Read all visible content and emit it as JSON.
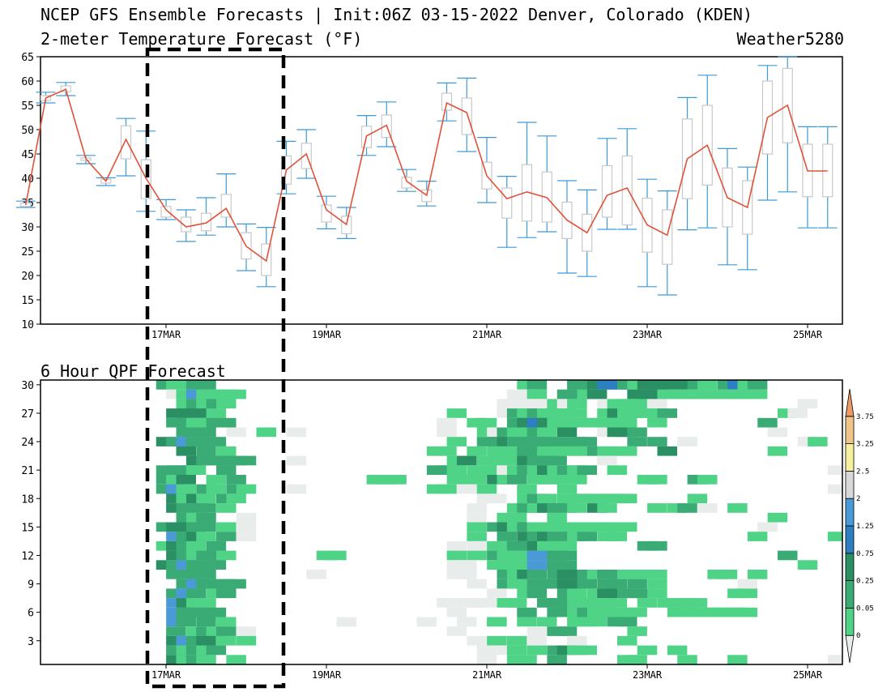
{
  "header": {
    "title": "NCEP GFS Ensemble Forecasts | Init:06Z 03-15-2022 Denver, Colorado (KDEN)",
    "subtitle": "2-meter Temperature Forecast (°F)",
    "brand": "Weather5280",
    "qpf_title": "6 Hour QPF Forecast"
  },
  "colors": {
    "mean_line": "#e0523a",
    "whisker": "#3d9ad6",
    "box": "#c8c8c8",
    "highlight": "#000000"
  },
  "chart_data": [
    {
      "type": "box",
      "title": "2-meter Temperature Forecast (°F)",
      "ylim": [
        10,
        65
      ],
      "yticks": [
        10,
        15,
        20,
        25,
        30,
        35,
        40,
        45,
        50,
        55,
        60,
        65
      ],
      "xlim": [
        15.25,
        25.25
      ],
      "xticks": [
        {
          "x": 17,
          "label": "17MAR"
        },
        {
          "x": 19,
          "label": "19MAR"
        },
        {
          "x": 21,
          "label": "21MAR"
        },
        {
          "x": 23,
          "label": "23MAR"
        },
        {
          "x": 25,
          "label": "25MAR"
        }
      ],
      "x_days": [
        15.25,
        15.5,
        15.75,
        16.0,
        16.25,
        16.5,
        16.75,
        17.0,
        17.25,
        17.5,
        17.75,
        18.0,
        18.25,
        18.5,
        18.75,
        19.0,
        19.25,
        19.5,
        19.75,
        20.0,
        20.25,
        20.5,
        20.75,
        21.0,
        21.25,
        21.5,
        21.75,
        22.0,
        22.25,
        22.5,
        22.75,
        23.0,
        23.25,
        23.5,
        23.75,
        24.0,
        24.25,
        24.5,
        24.75,
        25.0,
        25.25
      ],
      "mean": [
        34.5,
        56.5,
        58.3,
        44.0,
        39.4,
        48.0,
        40.0,
        33.5,
        30.0,
        30.8,
        33.8,
        26.0,
        23.0,
        41.7,
        45.0,
        33.5,
        30.5,
        48.7,
        50.9,
        39.4,
        36.5,
        55.5,
        53.5,
        40.5,
        35.8,
        37.2,
        36.0,
        31.4,
        28.8,
        36.5,
        38.0,
        30.4,
        28.3,
        44.0,
        46.8,
        36.0,
        34.0,
        52.5,
        55.0,
        41.5,
        41.5
      ],
      "whisker_low": [
        34.0,
        55.5,
        57.0,
        43.0,
        38.5,
        40.5,
        33.2,
        31.5,
        27.0,
        28.3,
        30.0,
        21.0,
        17.7,
        36.8,
        40.0,
        29.6,
        27.6,
        44.7,
        46.5,
        37.3,
        34.3,
        51.8,
        45.5,
        35.0,
        25.8,
        27.8,
        29.0,
        20.5,
        19.8,
        29.5,
        29.5,
        17.7,
        16.0,
        29.4,
        29.8,
        22.2,
        21.2,
        35.5,
        37.2,
        29.8,
        29.8
      ],
      "whisker_high": [
        35.3,
        57.7,
        59.7,
        44.7,
        40.1,
        52.3,
        49.7,
        35.6,
        33.5,
        36.0,
        40.9,
        30.6,
        29.9,
        47.6,
        50.0,
        36.3,
        34.0,
        52.9,
        55.7,
        41.8,
        39.4,
        59.6,
        60.6,
        48.4,
        40.4,
        51.5,
        48.7,
        39.5,
        37.6,
        48.2,
        50.2,
        39.8,
        37.4,
        56.6,
        61.2,
        46.1,
        42.3,
        63.2,
        65.0,
        50.6,
        50.6
      ],
      "box_low": [
        34.2,
        56.0,
        57.8,
        43.7,
        39.0,
        44.0,
        35.8,
        32.0,
        29.0,
        29.2,
        32.0,
        23.4,
        20.0,
        38.8,
        42.0,
        31.0,
        28.6,
        46.3,
        48.4,
        38.0,
        35.2,
        54.0,
        49.0,
        37.8,
        31.8,
        31.2,
        31.0,
        27.6,
        25.0,
        32.0,
        30.4,
        24.8,
        22.3,
        35.8,
        38.6,
        30.0,
        28.5,
        45.0,
        47.3,
        36.2,
        36.2
      ],
      "box_high": [
        34.9,
        57.0,
        59.0,
        44.2,
        39.8,
        50.8,
        43.8,
        34.2,
        32.0,
        32.8,
        36.7,
        28.8,
        26.5,
        44.6,
        47.2,
        34.5,
        32.2,
        50.7,
        53.0,
        40.2,
        37.6,
        57.5,
        56.5,
        43.3,
        38.0,
        42.8,
        41.3,
        35.1,
        32.6,
        42.6,
        44.6,
        35.9,
        33.5,
        52.2,
        55.0,
        42.1,
        39.5,
        60.0,
        62.6,
        47.0,
        47.0
      ]
    },
    {
      "type": "heatmap",
      "title": "6 Hour QPF Forecast",
      "yticks": [
        3,
        6,
        9,
        12,
        15,
        18,
        21,
        24,
        27,
        30
      ],
      "ylim": [
        0.5,
        30.5
      ],
      "xticks": [
        {
          "x": 17,
          "label": "17MAR"
        },
        {
          "x": 19,
          "label": "19MAR"
        },
        {
          "x": 21,
          "label": "21MAR"
        },
        {
          "x": 23,
          "label": "23MAR"
        },
        {
          "x": 25,
          "label": "25MAR"
        }
      ],
      "xlim": [
        15.25,
        25.25
      ],
      "levels": [
        0,
        0.05,
        0.25,
        0.75,
        1.25,
        2,
        2.5,
        3.25,
        3.75
      ],
      "level_colors": [
        "#e8ecea",
        "#4fd387",
        "#3aab74",
        "#2b8f64",
        "#2e7fc2",
        "#4b9ad8",
        "#d8d8d8",
        "#f5f0a0",
        "#f1c48a",
        "#ee9a66"
      ],
      "colorbar_ticks": [
        "0",
        "0.05",
        "0.25",
        "0.75",
        "1.25",
        "2",
        "2.5",
        "3.25",
        "3.75"
      ],
      "x_days": [
        16.75,
        16.875,
        17.0,
        17.125,
        17.25,
        17.375,
        17.5,
        17.625,
        17.75,
        17.875,
        18.0,
        18.125,
        18.25,
        18.375,
        18.5,
        18.625,
        18.75,
        18.875,
        19.0,
        19.125,
        19.25,
        19.375,
        19.5,
        19.625,
        19.75,
        19.875,
        20.0,
        20.125,
        20.25,
        20.375,
        20.5,
        20.625,
        20.75,
        20.875,
        21.0,
        21.125,
        21.25,
        21.375,
        21.5,
        21.625,
        21.75,
        21.875,
        22.0,
        22.125,
        22.25,
        22.375,
        22.5,
        22.625,
        22.75,
        22.875,
        23.0,
        23.125,
        23.25,
        23.375,
        23.5,
        23.625,
        23.75,
        23.875,
        24.0,
        24.125,
        24.25,
        24.375,
        24.5,
        24.625,
        24.75,
        24.875,
        25.0,
        25.125,
        25.25
      ],
      "grid_rows_top_to_bottom": [
        "..21122...............................12...22344213333321.2412..........",
        "...0151111...........................001..2213...3331111111111..........",
        "....12121...........................00000101..0111.0..............0....",
        "...33331.......................1....02121111..1311112...........10.....",
        "...221122.....................0..11..234311111111..1..........2........",
        "....222..0..1..0..............0...1021121.3...0332.............0......",
        "..325222.......................1..22322222222....2.2..0...........01...",
        "....3.2.1....................11..1.11122111112111...3..........1.......",
        ".....322222....0...............13.11113222....0........................",
        "..2221..2....................221.11.012131212..1.....................0.",
        "..213..1.2.............111.....111.312.11111......11...21.............",
        "..251.21.21....0.............11.0.1...1...1..........................0",
        "...3131.21........................00..121.1111111......1..............",
        "...3222.1........................0...1213221.31....1.12.0..1...........",
        "....212...0......................0..11...1.....................1......",
        "..23322.1.0......................1.23121111111111.............0.......",
        "...5231.2.0......................1..2.3232212.11.............1.......1",
        "..1321.2.......................0.0.11223111.......22..................",
        "...321221.........11...........1.1.21115522.....................2.....",
        "..325222.......................00..11115522.......................1..",
        "...2222..........0.............00...2132.23321221111.....11..1........",
        "....252222.......................0..211222332.22.2.1........0........",
        "...252.12..........................0..12..21.1332221.......11.........",
        "...5311.......................0.000.11..22211111..1.1111..............",
        "...52222.......................0......2..221211111...11111111.........",
        "...52.2.1...........0.......0...0..1..1.1..111.22.....................",
        "...2.1212.0....................0.......0.22......1.....................",
        "...3523.1.1......................0.1.1.0...0....1.....................",
        "...21212..........................0.01.1.2311.....1..1.................",
        "...3121..1........................0..11..2......11....1....1.........0."
      ]
    }
  ]
}
